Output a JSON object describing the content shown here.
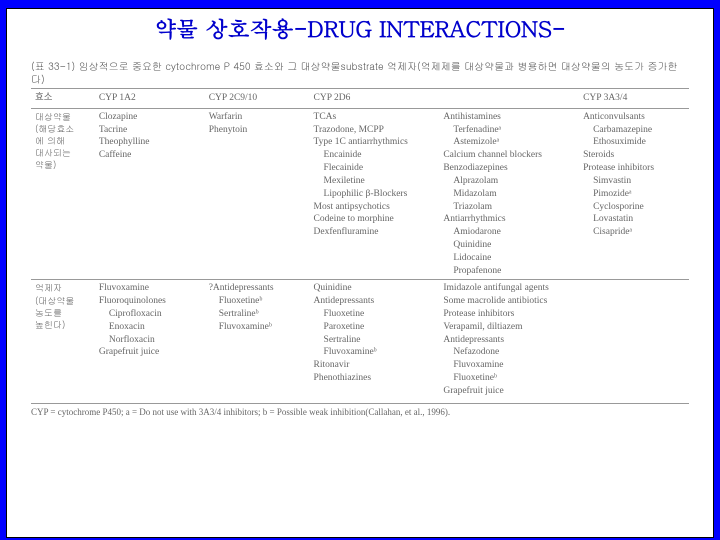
{
  "title": "약물 상호작용-DRUG INTERACTIONS-",
  "caption": "(표 33-1) 임상적으로 중요한 cytochrome P 450 효소와 그 대상약물substrate 억제자(억제제를 대상약물과 병용하면 대상약물의 농도가 증가한다)",
  "columns": [
    "효소",
    "CYP 1A2",
    "CYP 2C9/10",
    "CYP 2D6",
    "",
    "CYP 3A3/4"
  ],
  "row1_label": "대상약물\n(해당효소\n에 의해\n대사되는\n약물)",
  "row1": {
    "c2": [
      "Clozapine",
      "Tacrine",
      "Theophylline",
      "Caffeine"
    ],
    "c3": [
      "Warfarin",
      "Phenytoin"
    ],
    "c4": [
      "TCAs",
      "Trazodone, MCPP",
      "Type 1C antiarrhythmics",
      "  Encainide",
      "  Flecainide",
      "  Mexiletine",
      "  Lipophilic β-Blockers",
      "Most antipsychotics",
      "Codeine to morphine",
      "Dexfenfluramine"
    ],
    "c5": [
      "Antihistamines",
      "  Terfenadineᵃ",
      "  Astemizoleᵃ",
      "Calcium channel blockers",
      "Benzodiazepines",
      "  Alprazolam",
      "  Midazolam",
      "  Triazolam",
      "Antiarrhythmics",
      "  Amiodarone",
      "  Quinidine",
      "  Lidocaine",
      "  Propafenone"
    ],
    "c6": [
      "Anticonvulsants",
      "  Carbamazepine",
      "  Ethosuximide",
      "Steroids",
      "Protease inhibitors",
      "  Simvastin",
      "  Pimozideᵃ",
      "  Cyclosporine",
      "  Lovastatin",
      "  Cisaprideᵃ"
    ]
  },
  "row2_label": "억제자\n(대상약물\n농도를\n높힌다)",
  "row2": {
    "c2": [
      "Fluvoxamine",
      "",
      "Fluoroquinolones",
      "  Ciprofloxacin",
      "  Enoxacin",
      "  Norfloxacin",
      "Grapefruit juice"
    ],
    "c3": [
      "?Antidepressants",
      "  Fluoxetineᵇ",
      "  Sertralineᵇ",
      "  Fluvoxamineᵇ"
    ],
    "c4": [
      "Quinidine",
      "Antidepressants",
      "  Fluoxetine",
      "  Paroxetine",
      "  Sertraline",
      "  Fluvoxamineᵇ",
      "Ritonavir",
      "Phenothiazines"
    ],
    "c5": [
      "Imidazole antifungal agents",
      "Some macrolide antibiotics",
      "Protease inhibitors",
      "Verapamil, diltiazem",
      "Antidepressants",
      "  Nefazodone",
      "  Fluvoxamine",
      "  Fluoxetineᵇ",
      "Grapefruit juice"
    ],
    "c6": []
  },
  "footnote": "CYP = cytochrome P450;  a = Do not use with 3A3/4 inhibitors;  b = Possible weak inhibition(Callahan, et al., 1996).",
  "colors": {
    "page_bg": "#0000ff",
    "content_bg": "#ffffff",
    "title_color": "#0000cc",
    "text_color": "#666666",
    "border_color": "#999999"
  }
}
